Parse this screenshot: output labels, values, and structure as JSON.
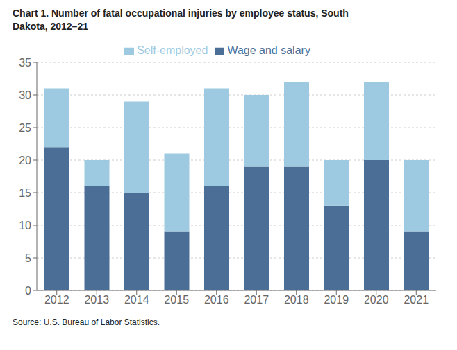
{
  "chart_data": {
    "type": "bar",
    "title": "Chart 1. Number of fatal occupational injuries by employee status, South\nDakota, 2012–21",
    "annotations": [
      "Source: U.S. Bureau of Labor Statistics."
    ],
    "categories": [
      "2012",
      "2013",
      "2014",
      "2015",
      "2016",
      "2017",
      "2018",
      "2019",
      "2020",
      "2021"
    ],
    "series": [
      {
        "name": "Wage and salary",
        "color": "#4a6e96",
        "values": [
          22,
          16,
          15,
          9,
          16,
          19,
          19,
          13,
          20,
          9
        ]
      },
      {
        "name": "Self-employed",
        "color": "#9ecae1",
        "values": [
          9,
          4,
          14,
          12,
          15,
          11,
          13,
          7,
          12,
          11
        ]
      }
    ],
    "ylim": [
      0,
      35
    ],
    "yticks": [
      0,
      5,
      10,
      15,
      20,
      25,
      30,
      35
    ],
    "stacked": true,
    "grid": true,
    "legend": "top"
  }
}
